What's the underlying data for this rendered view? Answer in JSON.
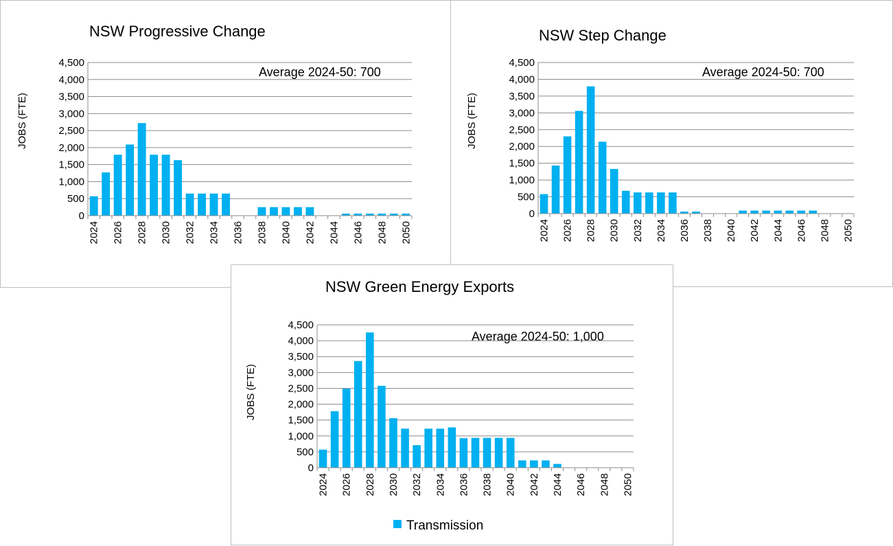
{
  "colors": {
    "bar": "#00B0F0",
    "grid": "#8c8c8c"
  },
  "chart_data": [
    {
      "type": "bar",
      "title": "NSW Progressive Change",
      "annotation": "Average  2024-50: 700",
      "ylabel": "JOBS (FTE)",
      "xlabel": "",
      "ylim": [
        0,
        4500
      ],
      "yticks": [
        0,
        500,
        1000,
        1500,
        2000,
        2500,
        3000,
        3500,
        4000,
        4500
      ],
      "ytick_labels": [
        "0",
        "500",
        "1,000",
        "1,500",
        "2,000",
        "2,500",
        "3,000",
        "3,500",
        "4,000",
        "4,500"
      ],
      "categories": [
        "2024",
        "2025",
        "2026",
        "2027",
        "2028",
        "2029",
        "2030",
        "2031",
        "2032",
        "2033",
        "2034",
        "2035",
        "2036",
        "2037",
        "2038",
        "2039",
        "2040",
        "2041",
        "2042",
        "2043",
        "2044",
        "2045",
        "2046",
        "2047",
        "2048",
        "2049",
        "2050"
      ],
      "xtick_labels": [
        "2024",
        "2026",
        "2028",
        "2030",
        "2032",
        "2034",
        "2036",
        "2038",
        "2040",
        "2042",
        "2044",
        "2046",
        "2048",
        "2050"
      ],
      "series": [
        {
          "name": "Transmission",
          "values": [
            570,
            1270,
            1790,
            2090,
            2720,
            1790,
            1790,
            1630,
            650,
            650,
            650,
            650,
            0,
            0,
            250,
            250,
            250,
            250,
            250,
            0,
            0,
            60,
            60,
            60,
            60,
            60,
            60
          ]
        }
      ]
    },
    {
      "type": "bar",
      "title": "NSW Step Change",
      "annotation": "Average  2024-50: 700",
      "ylabel": "JOBS (FTE)",
      "xlabel": "",
      "ylim": [
        0,
        4500
      ],
      "yticks": [
        0,
        500,
        1000,
        1500,
        2000,
        2500,
        3000,
        3500,
        4000,
        4500
      ],
      "ytick_labels": [
        "0",
        "500",
        "1,000",
        "1,500",
        "2,000",
        "2,500",
        "3,000",
        "3,500",
        "4,000",
        "4,500"
      ],
      "categories": [
        "2024",
        "2025",
        "2026",
        "2027",
        "2028",
        "2029",
        "2030",
        "2031",
        "2032",
        "2033",
        "2034",
        "2035",
        "2036",
        "2037",
        "2038",
        "2039",
        "2040",
        "2041",
        "2042",
        "2043",
        "2044",
        "2045",
        "2046",
        "2047",
        "2048",
        "2049",
        "2050"
      ],
      "xtick_labels": [
        "2024",
        "2026",
        "2028",
        "2030",
        "2032",
        "2034",
        "2036",
        "2038",
        "2040",
        "2042",
        "2044",
        "2046",
        "2048",
        "2050"
      ],
      "series": [
        {
          "name": "Transmission",
          "values": [
            580,
            1430,
            2300,
            3060,
            3790,
            2140,
            1330,
            680,
            630,
            630,
            630,
            630,
            60,
            60,
            0,
            0,
            0,
            90,
            90,
            90,
            90,
            90,
            90,
            90,
            0,
            0,
            0
          ]
        }
      ]
    },
    {
      "type": "bar",
      "title": "NSW Green Energy Exports",
      "annotation": "Average  2024-50: 1,000",
      "ylabel": "JOBS (FTE)",
      "xlabel": "",
      "ylim": [
        0,
        4500
      ],
      "yticks": [
        0,
        500,
        1000,
        1500,
        2000,
        2500,
        3000,
        3500,
        4000,
        4500
      ],
      "ytick_labels": [
        "0",
        "500",
        "1,000",
        "1,500",
        "2,000",
        "2,500",
        "3,000",
        "3,500",
        "4,000",
        "4,500"
      ],
      "categories": [
        "2024",
        "2025",
        "2026",
        "2027",
        "2028",
        "2029",
        "2030",
        "2031",
        "2032",
        "2033",
        "2034",
        "2035",
        "2036",
        "2037",
        "2038",
        "2039",
        "2040",
        "2041",
        "2042",
        "2043",
        "2044",
        "2045",
        "2046",
        "2047",
        "2048",
        "2049",
        "2050"
      ],
      "xtick_labels": [
        "2024",
        "2026",
        "2028",
        "2030",
        "2032",
        "2034",
        "2036",
        "2038",
        "2040",
        "2042",
        "2044",
        "2046",
        "2048",
        "2050"
      ],
      "series": [
        {
          "name": "Transmission",
          "values": [
            570,
            1780,
            2490,
            3360,
            4260,
            2580,
            1560,
            1230,
            710,
            1230,
            1230,
            1270,
            930,
            940,
            940,
            940,
            940,
            230,
            230,
            230,
            120,
            0,
            0,
            0,
            0,
            0,
            0
          ]
        }
      ],
      "legend": {
        "position": "bottom",
        "entries": [
          "Transmission"
        ]
      }
    }
  ]
}
